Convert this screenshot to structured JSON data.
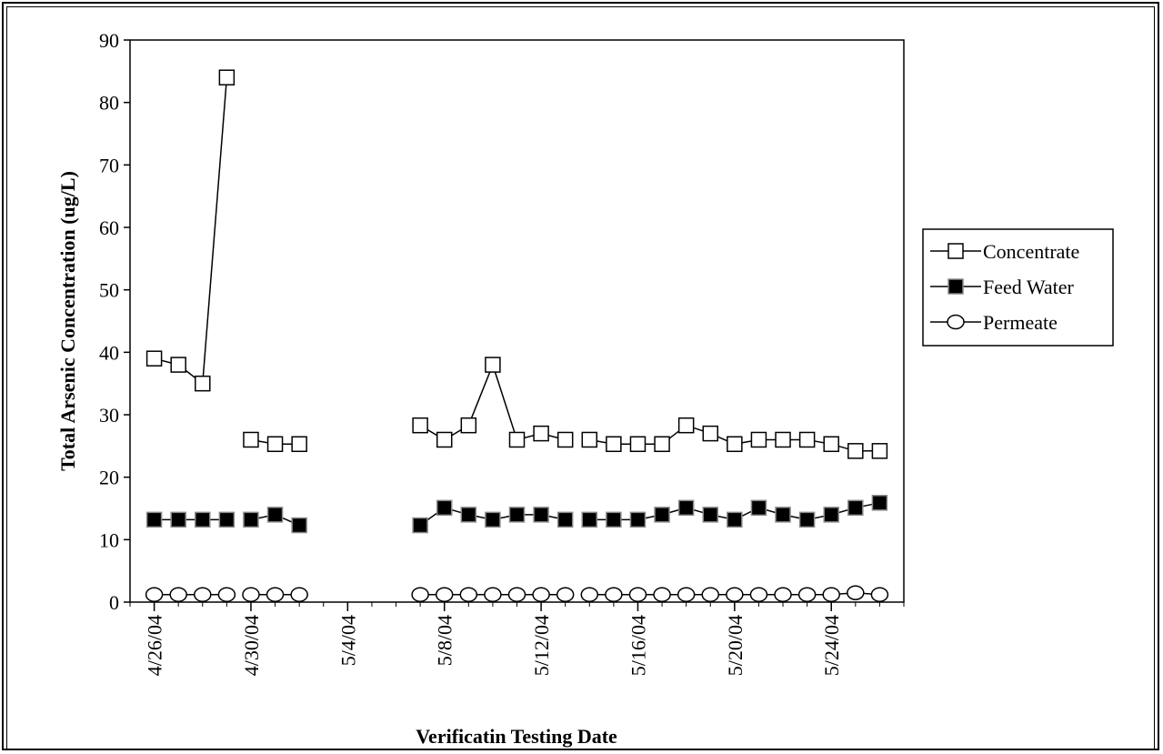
{
  "chart_data": {
    "type": "line",
    "title": "",
    "xlabel": "Verificatin Testing Date",
    "ylabel": "Total Arsenic Concentration (ug/L)",
    "ylim": [
      0,
      90
    ],
    "yticks": [
      0,
      10,
      20,
      30,
      40,
      50,
      60,
      70,
      80,
      90
    ],
    "xlim": [
      "4/25/04",
      "5/27/04"
    ],
    "xticks": [
      "4/26/04",
      "4/30/04",
      "5/4/04",
      "5/8/04",
      "5/12/04",
      "5/16/04",
      "5/20/04",
      "5/24/04"
    ],
    "grid": false,
    "legend_position": "right",
    "series": [
      {
        "name": "Concentrate",
        "marker": "open-square",
        "color": "#000000",
        "segments": [
          [
            [
              "4/26/04",
              39
            ],
            [
              "4/27/04",
              38
            ],
            [
              "4/28/04",
              35
            ],
            [
              "4/29/04",
              84
            ]
          ],
          [
            [
              "4/30/04",
              26
            ],
            [
              "5/1/04",
              25.3
            ],
            [
              "5/2/04",
              25.3
            ]
          ],
          [
            [
              "5/7/04",
              28.3
            ],
            [
              "5/8/04",
              26
            ],
            [
              "5/9/04",
              28.3
            ],
            [
              "5/10/04",
              38
            ],
            [
              "5/11/04",
              26
            ],
            [
              "5/12/04",
              27
            ],
            [
              "5/13/04",
              26
            ]
          ],
          [
            [
              "5/14/04",
              26
            ],
            [
              "5/15/04",
              25.3
            ],
            [
              "5/16/04",
              25.3
            ],
            [
              "5/17/04",
              25.3
            ],
            [
              "5/18/04",
              28.3
            ],
            [
              "5/19/04",
              27
            ],
            [
              "5/20/04",
              25.3
            ],
            [
              "5/21/04",
              26
            ],
            [
              "5/22/04",
              26
            ],
            [
              "5/23/04",
              26
            ],
            [
              "5/24/04",
              25.3
            ],
            [
              "5/25/04",
              24.2
            ],
            [
              "5/26/04",
              24.2
            ]
          ]
        ]
      },
      {
        "name": "Feed Water",
        "marker": "filled-square",
        "color": "#000000",
        "segments": [
          [
            [
              "4/26/04",
              13.2
            ],
            [
              "4/27/04",
              13.2
            ],
            [
              "4/28/04",
              13.2
            ],
            [
              "4/29/04",
              13.2
            ]
          ],
          [
            [
              "4/30/04",
              13.2
            ],
            [
              "5/1/04",
              14
            ],
            [
              "5/2/04",
              12.3
            ]
          ],
          [
            [
              "5/7/04",
              12.3
            ],
            [
              "5/8/04",
              15.1
            ],
            [
              "5/9/04",
              14
            ],
            [
              "5/10/04",
              13.2
            ],
            [
              "5/11/04",
              14
            ],
            [
              "5/12/04",
              14
            ],
            [
              "5/13/04",
              13.2
            ]
          ],
          [
            [
              "5/14/04",
              13.2
            ],
            [
              "5/15/04",
              13.2
            ],
            [
              "5/16/04",
              13.2
            ],
            [
              "5/17/04",
              14
            ],
            [
              "5/18/04",
              15.1
            ],
            [
              "5/19/04",
              14
            ],
            [
              "5/20/04",
              13.2
            ],
            [
              "5/21/04",
              15.1
            ],
            [
              "5/22/04",
              14
            ],
            [
              "5/23/04",
              13.2
            ],
            [
              "5/24/04",
              14
            ],
            [
              "5/25/04",
              15.1
            ],
            [
              "5/26/04",
              15.9
            ]
          ]
        ]
      },
      {
        "name": "Permeate",
        "marker": "open-circle",
        "color": "#000000",
        "segments": [
          [
            [
              "4/26/04",
              1.2
            ],
            [
              "4/27/04",
              1.2
            ],
            [
              "4/28/04",
              1.2
            ],
            [
              "4/29/04",
              1.2
            ]
          ],
          [
            [
              "4/30/04",
              1.2
            ],
            [
              "5/1/04",
              1.2
            ],
            [
              "5/2/04",
              1.2
            ]
          ],
          [
            [
              "5/7/04",
              1.2
            ],
            [
              "5/8/04",
              1.2
            ],
            [
              "5/9/04",
              1.2
            ],
            [
              "5/10/04",
              1.2
            ],
            [
              "5/11/04",
              1.2
            ],
            [
              "5/12/04",
              1.2
            ],
            [
              "5/13/04",
              1.2
            ]
          ],
          [
            [
              "5/14/04",
              1.2
            ],
            [
              "5/15/04",
              1.2
            ],
            [
              "5/16/04",
              1.2
            ],
            [
              "5/17/04",
              1.2
            ],
            [
              "5/18/04",
              1.2
            ],
            [
              "5/19/04",
              1.2
            ],
            [
              "5/20/04",
              1.2
            ],
            [
              "5/21/04",
              1.2
            ],
            [
              "5/22/04",
              1.2
            ],
            [
              "5/23/04",
              1.2
            ],
            [
              "5/24/04",
              1.2
            ],
            [
              "5/25/04",
              1.5
            ],
            [
              "5/26/04",
              1.2
            ]
          ]
        ]
      }
    ]
  }
}
